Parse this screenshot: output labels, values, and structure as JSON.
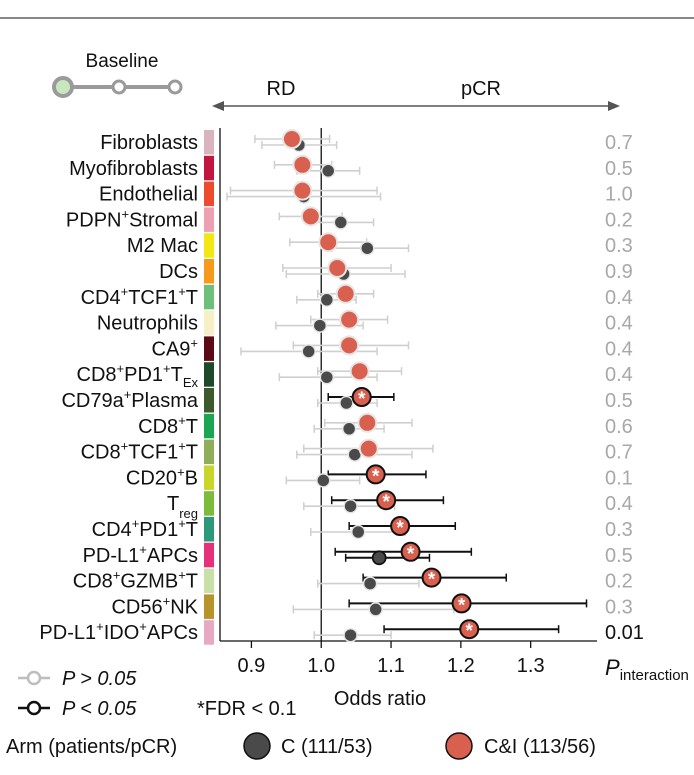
{
  "baseline_label": "Baseline",
  "direction_left": "RD",
  "direction_right": "pCR",
  "p_interaction_label_main": "P",
  "p_interaction_label_sub": "interaction",
  "colors": {
    "C": "#4a4a4a",
    "CI": "#d9604e",
    "grey_ci": "#cfcfcf",
    "black_ci": "#111111",
    "p_sig": "#111111",
    "p_nonsig": "#a8a8a8"
  },
  "legend": {
    "p_gt_label": "P > 0.05",
    "p_lt_label": "P < 0.05",
    "fdr_label": "*FDR < 0.1",
    "arm_title": "Arm (patients/pCR)",
    "arm_c_label": "C (111/53)",
    "arm_ci_label": "C&I (113/56)"
  },
  "chart_data": {
    "type": "forest",
    "xlabel": "Odds ratio",
    "xlim": [
      0.855,
      1.395
    ],
    "xticks": [
      0.9,
      1.0,
      1.1,
      1.2,
      1.3
    ],
    "xtick_labels": [
      "0.9",
      "1.0",
      "1.1",
      "1.2",
      "1.3"
    ],
    "reference_line": 1.0,
    "rows": [
      {
        "label": "Fibroblasts",
        "sup": "",
        "sub": "",
        "swatch": "#d9b3bd",
        "c": {
          "or": 0.968,
          "lo": 0.915,
          "hi": 1.022,
          "sig": false
        },
        "ci": {
          "or": 0.958,
          "lo": 0.905,
          "hi": 1.012,
          "sig": false,
          "fdr": false
        },
        "p_interaction": "0.7",
        "p_sig": false
      },
      {
        "label": "Myofibroblasts",
        "sup": "",
        "sub": "",
        "swatch": "#c2163f",
        "c": {
          "or": 1.01,
          "lo": 0.965,
          "hi": 1.055,
          "sig": false
        },
        "ci": {
          "or": 0.973,
          "lo": 0.933,
          "hi": 1.015,
          "sig": false,
          "fdr": false
        },
        "p_interaction": "0.5",
        "p_sig": false
      },
      {
        "label": "Endothelial",
        "sup": "",
        "sub": "",
        "swatch": "#ee4a2e",
        "c": {
          "or": 0.975,
          "lo": 0.865,
          "hi": 1.085,
          "sig": false
        },
        "ci": {
          "or": 0.973,
          "lo": 0.87,
          "hi": 1.08,
          "sig": false,
          "fdr": false
        },
        "p_interaction": "1.0",
        "p_sig": false
      },
      {
        "label": "PDPN",
        "sup": "+",
        "sub": "",
        "tail": "Stromal",
        "swatch": "#ef9fb2",
        "c": {
          "or": 1.028,
          "lo": 0.985,
          "hi": 1.075,
          "sig": false
        },
        "ci": {
          "or": 0.985,
          "lo": 0.94,
          "hi": 1.03,
          "sig": false,
          "fdr": false
        },
        "p_interaction": "0.2",
        "p_sig": false
      },
      {
        "label": "M2 Mac",
        "sup": "",
        "sub": "",
        "swatch": "#f2e713",
        "c": {
          "or": 1.066,
          "lo": 1.015,
          "hi": 1.125,
          "sig": false
        },
        "ci": {
          "or": 1.01,
          "lo": 0.955,
          "hi": 1.065,
          "sig": false,
          "fdr": false
        },
        "p_interaction": "0.3",
        "p_sig": false
      },
      {
        "label": "DCs",
        "sup": "",
        "sub": "",
        "swatch": "#f59a1a",
        "c": {
          "or": 1.032,
          "lo": 0.95,
          "hi": 1.12,
          "sig": false
        },
        "ci": {
          "or": 1.023,
          "lo": 0.945,
          "hi": 1.1,
          "sig": false,
          "fdr": false
        },
        "p_interaction": "0.9",
        "p_sig": false
      },
      {
        "label": "CD4",
        "sup": "+",
        "sub": "",
        "tail": "TCF1",
        "tail_sup": "+",
        "tail2": "T",
        "swatch": "#6dbf7c",
        "c": {
          "or": 1.008,
          "lo": 0.965,
          "hi": 1.05,
          "sig": false
        },
        "ci": {
          "or": 1.035,
          "lo": 0.995,
          "hi": 1.075,
          "sig": false,
          "fdr": false
        },
        "p_interaction": "0.4",
        "p_sig": false
      },
      {
        "label": "Neutrophils",
        "sup": "",
        "sub": "",
        "swatch": "#f7f0c6",
        "c": {
          "or": 0.998,
          "lo": 0.935,
          "hi": 1.06,
          "sig": false
        },
        "ci": {
          "or": 1.04,
          "lo": 0.985,
          "hi": 1.095,
          "sig": false,
          "fdr": false
        },
        "p_interaction": "0.4",
        "p_sig": false
      },
      {
        "label": "CA9",
        "sup": "+",
        "sub": "",
        "swatch": "#5c0b14",
        "c": {
          "or": 0.982,
          "lo": 0.885,
          "hi": 1.08,
          "sig": false
        },
        "ci": {
          "or": 1.04,
          "lo": 0.96,
          "hi": 1.125,
          "sig": false,
          "fdr": false
        },
        "p_interaction": "0.4",
        "p_sig": false
      },
      {
        "label": "CD8",
        "sup": "+",
        "sub": "",
        "tail": "PD1",
        "tail_sup": "+",
        "tail2": "T",
        "tail2_sub": "Ex",
        "swatch": "#1e4a2a",
        "c": {
          "or": 1.008,
          "lo": 0.94,
          "hi": 1.08,
          "sig": false
        },
        "ci": {
          "or": 1.055,
          "lo": 0.995,
          "hi": 1.115,
          "sig": false,
          "fdr": false
        },
        "p_interaction": "0.4",
        "p_sig": false
      },
      {
        "label": "CD79a",
        "sup": "+",
        "sub": "",
        "tail": "Plasma",
        "swatch": "#3c5a2e",
        "c": {
          "or": 1.036,
          "lo": 0.995,
          "hi": 1.08,
          "sig": false
        },
        "ci": {
          "or": 1.058,
          "lo": 1.01,
          "hi": 1.104,
          "sig": true,
          "fdr": true
        },
        "p_interaction": "0.5",
        "p_sig": false
      },
      {
        "label": "CD8",
        "sup": "+",
        "sub": "",
        "tail": "T",
        "swatch": "#1aa652",
        "c": {
          "or": 1.04,
          "lo": 0.99,
          "hi": 1.09,
          "sig": false
        },
        "ci": {
          "or": 1.066,
          "lo": 1.005,
          "hi": 1.13,
          "sig": false,
          "fdr": false
        },
        "p_interaction": "0.6",
        "p_sig": false
      },
      {
        "label": "CD8",
        "sup": "+",
        "sub": "",
        "tail": "TCF1",
        "tail_sup": "+",
        "tail2": "T",
        "swatch": "#8fae5a",
        "c": {
          "or": 1.048,
          "lo": 0.965,
          "hi": 1.13,
          "sig": false
        },
        "ci": {
          "or": 1.068,
          "lo": 0.975,
          "hi": 1.16,
          "sig": false,
          "fdr": false
        },
        "p_interaction": "0.7",
        "p_sig": false
      },
      {
        "label": "CD20",
        "sup": "+",
        "sub": "",
        "tail": "B",
        "swatch": "#c8d62a",
        "c": {
          "or": 1.003,
          "lo": 0.95,
          "hi": 1.055,
          "sig": false
        },
        "ci": {
          "or": 1.078,
          "lo": 1.01,
          "hi": 1.15,
          "sig": true,
          "fdr": true
        },
        "p_interaction": "0.1",
        "p_sig": false
      },
      {
        "label": "T",
        "sup": "",
        "sub": "reg",
        "swatch": "#7dbb3a",
        "c": {
          "or": 1.042,
          "lo": 0.975,
          "hi": 1.105,
          "sig": false
        },
        "ci": {
          "or": 1.093,
          "lo": 1.015,
          "hi": 1.175,
          "sig": true,
          "fdr": true
        },
        "p_interaction": "0.4",
        "p_sig": false
      },
      {
        "label": "CD4",
        "sup": "+",
        "sub": "",
        "tail": "PD1",
        "tail_sup": "+",
        "tail2": "T",
        "swatch": "#2c9a7a",
        "c": {
          "or": 1.053,
          "lo": 0.985,
          "hi": 1.12,
          "sig": false
        },
        "ci": {
          "or": 1.113,
          "lo": 1.04,
          "hi": 1.192,
          "sig": true,
          "fdr": true
        },
        "p_interaction": "0.3",
        "p_sig": false
      },
      {
        "label": "PD-L1",
        "sup": "+",
        "sub": "",
        "tail": "APCs",
        "swatch": "#e6307a",
        "c": {
          "or": 1.083,
          "lo": 1.035,
          "hi": 1.155,
          "sig": true
        },
        "ci": {
          "or": 1.128,
          "lo": 1.02,
          "hi": 1.215,
          "sig": true,
          "fdr": true
        },
        "p_interaction": "0.5",
        "p_sig": false
      },
      {
        "label": "CD8",
        "sup": "+",
        "sub": "",
        "tail": "GZMB",
        "tail_sup": "+",
        "tail2": "T",
        "swatch": "#c7e0a8",
        "c": {
          "or": 1.07,
          "lo": 0.995,
          "hi": 1.14,
          "sig": false
        },
        "ci": {
          "or": 1.158,
          "lo": 1.06,
          "hi": 1.265,
          "sig": true,
          "fdr": true
        },
        "p_interaction": "0.2",
        "p_sig": false
      },
      {
        "label": "CD56",
        "sup": "+",
        "sub": "",
        "tail": "NK",
        "swatch": "#b8922a",
        "c": {
          "or": 1.078,
          "lo": 0.96,
          "hi": 1.19,
          "sig": false
        },
        "ci": {
          "or": 1.201,
          "lo": 1.04,
          "hi": 1.38,
          "sig": true,
          "fdr": true
        },
        "p_interaction": "0.3",
        "p_sig": false
      },
      {
        "label": "PD-L1",
        "sup": "+",
        "sub": "",
        "tail": "IDO",
        "tail_sup": "+",
        "tail2": "APCs",
        "swatch": "#e7a8c4",
        "c": {
          "or": 1.042,
          "lo": 0.99,
          "hi": 1.1,
          "sig": false
        },
        "ci": {
          "or": 1.212,
          "lo": 1.09,
          "hi": 1.34,
          "sig": true,
          "fdr": true
        },
        "p_interaction": "0.01",
        "p_sig": true
      }
    ]
  }
}
